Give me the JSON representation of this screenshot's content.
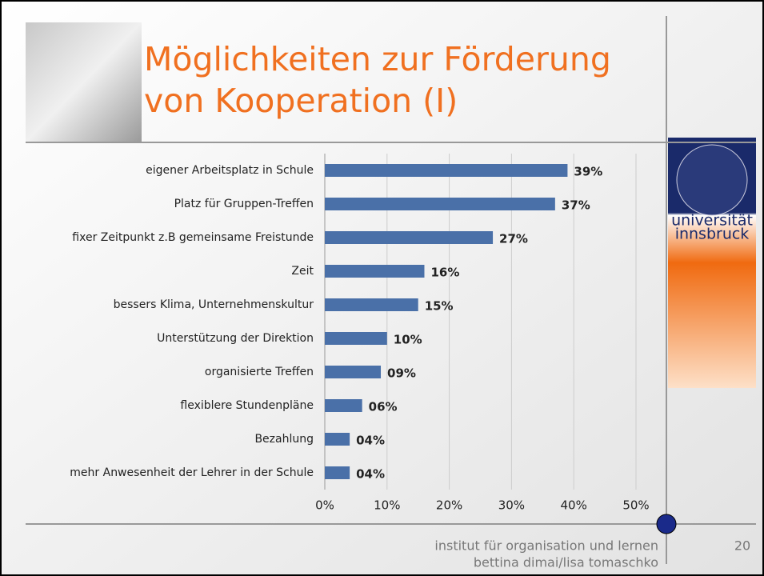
{
  "slide": {
    "footer_lines": [
      "institut für organisation und lernen",
      "bettina dimai/lisa tomaschko"
    ],
    "page_number": "20",
    "logo_lines": [
      "universität",
      "innsbruck"
    ]
  },
  "chart_data": {
    "type": "hbar",
    "title": "Möglichkeiten zur Förderung von Kooperation (I)",
    "categories": [
      "eigener Arbeitsplatz in Schule",
      "Platz für Gruppen-Treffen",
      "fixer Zeitpunkt z.B gemeinsame Freistunde",
      "Zeit",
      "bessers Klima, Unternehmenskultur",
      "Unterstützung der Direktion",
      "organisierte Treffen",
      "flexiblere Stundenpläne",
      "Bezahlung",
      "mehr Anwesenheit der Lehrer in der Schule"
    ],
    "values": [
      39,
      37,
      27,
      16,
      15,
      10,
      9,
      6,
      4,
      4
    ],
    "value_labels": [
      "39%",
      "37%",
      "27%",
      "16%",
      "15%",
      "10%",
      "09%",
      "06%",
      "04%",
      "04%"
    ],
    "color": "#4a70a8",
    "xlim": [
      0,
      50
    ],
    "xticks": [
      {
        "value": 0,
        "label": "0%"
      },
      {
        "value": 10,
        "label": "10%"
      },
      {
        "value": 20,
        "label": "20%"
      },
      {
        "value": 30,
        "label": "30%"
      },
      {
        "value": 40,
        "label": "40%"
      },
      {
        "value": 50,
        "label": "50%"
      }
    ],
    "grid": true
  }
}
